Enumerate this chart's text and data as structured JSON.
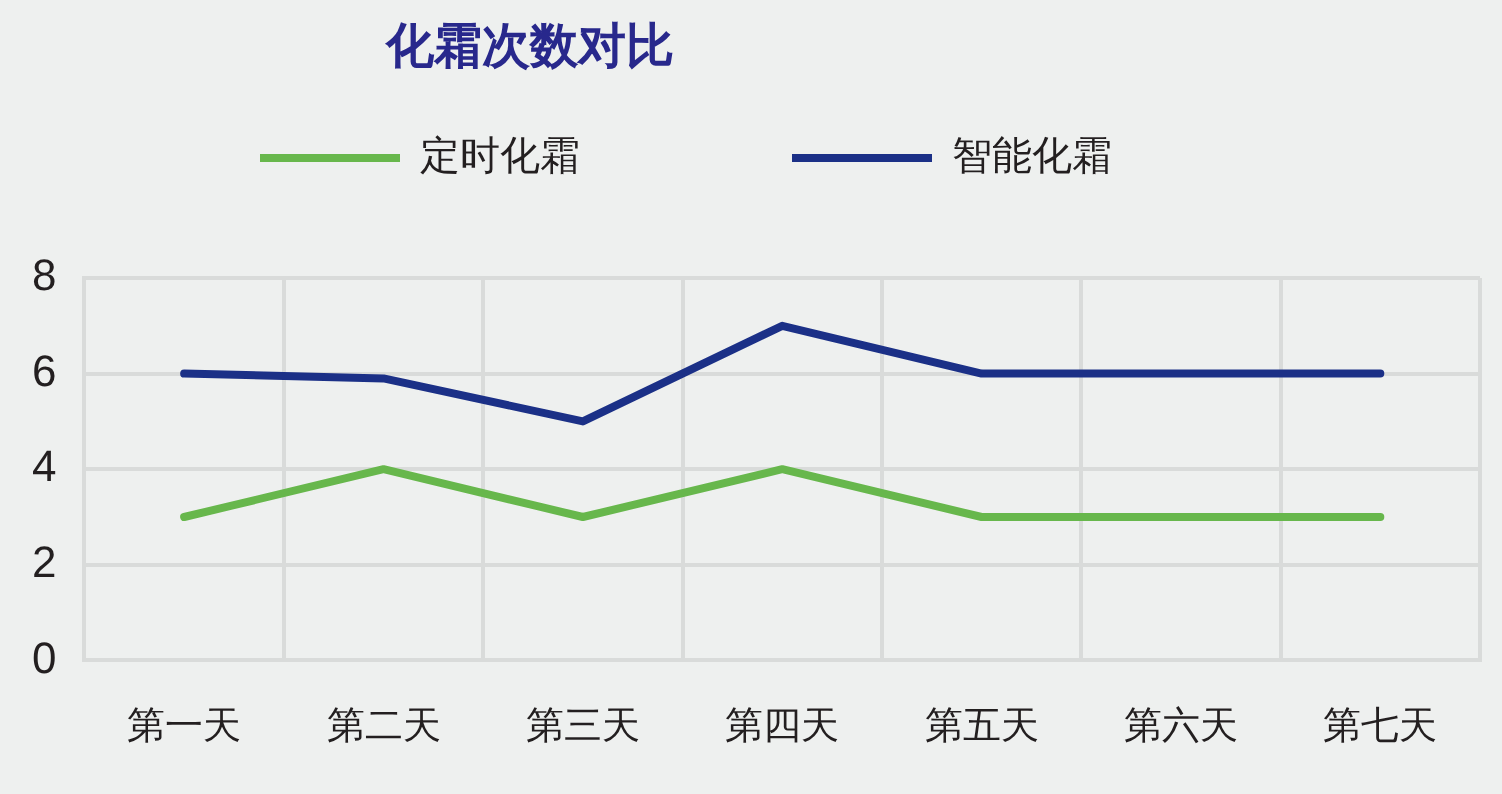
{
  "chart_data": {
    "type": "line",
    "title": "化霜次数对比",
    "categories": [
      "第一天",
      "第二天",
      "第三天",
      "第四天",
      "第五天",
      "第六天",
      "第七天"
    ],
    "series": [
      {
        "name": "定时化霜",
        "color": "#67b74c",
        "values": [
          3,
          4,
          3,
          4,
          3,
          3,
          3
        ]
      },
      {
        "name": "智能化霜",
        "color": "#1b3087",
        "values": [
          6,
          5.9,
          5,
          7,
          6,
          6,
          6
        ]
      }
    ],
    "ylim": [
      0,
      8
    ],
    "yticks": [
      0,
      2,
      4,
      6,
      8
    ],
    "grid": true,
    "legend": "top"
  }
}
